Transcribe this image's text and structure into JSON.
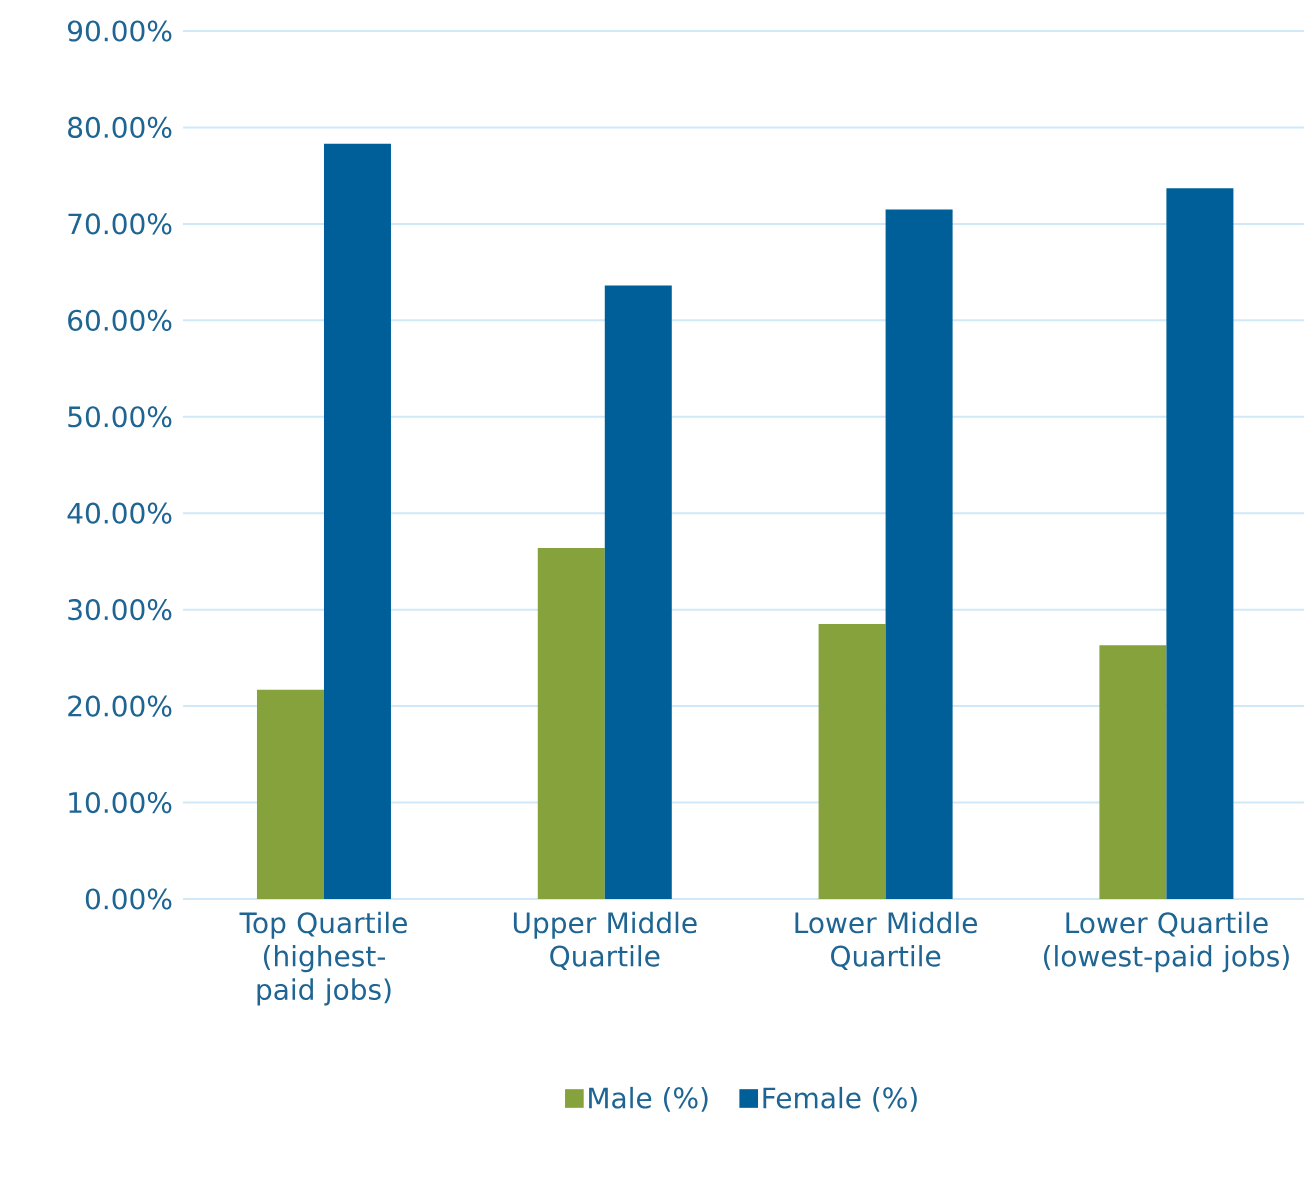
{
  "chart_data": {
    "type": "bar",
    "categories": [
      "Top Quartile (highest-paid jobs)",
      "Upper Middle Quartile",
      "Lower Middle Quartile",
      "Lower Quartile (lowest-paid jobs)"
    ],
    "series": [
      {
        "name": "Male (%)",
        "color": "#86a23d",
        "values": [
          21.7,
          36.4,
          28.5,
          26.3
        ]
      },
      {
        "name": "Female (%)",
        "color": "#005f99",
        "values": [
          78.3,
          63.6,
          71.5,
          73.7
        ]
      }
    ],
    "ylim": [
      0,
      90
    ],
    "yticks": [
      {
        "value": 0,
        "label": "0.00%"
      },
      {
        "value": 10,
        "label": "10.00%"
      },
      {
        "value": 20,
        "label": "20.00%"
      },
      {
        "value": 30,
        "label": "30.00%"
      },
      {
        "value": 40,
        "label": "40.00%"
      },
      {
        "value": 50,
        "label": "50.00%"
      },
      {
        "value": 60,
        "label": "60.00%"
      },
      {
        "value": 70,
        "label": "70.00%"
      },
      {
        "value": 80,
        "label": "80.00%"
      },
      {
        "value": 90,
        "label": "90.00%"
      }
    ],
    "grid": "y",
    "legend": "bottom"
  }
}
